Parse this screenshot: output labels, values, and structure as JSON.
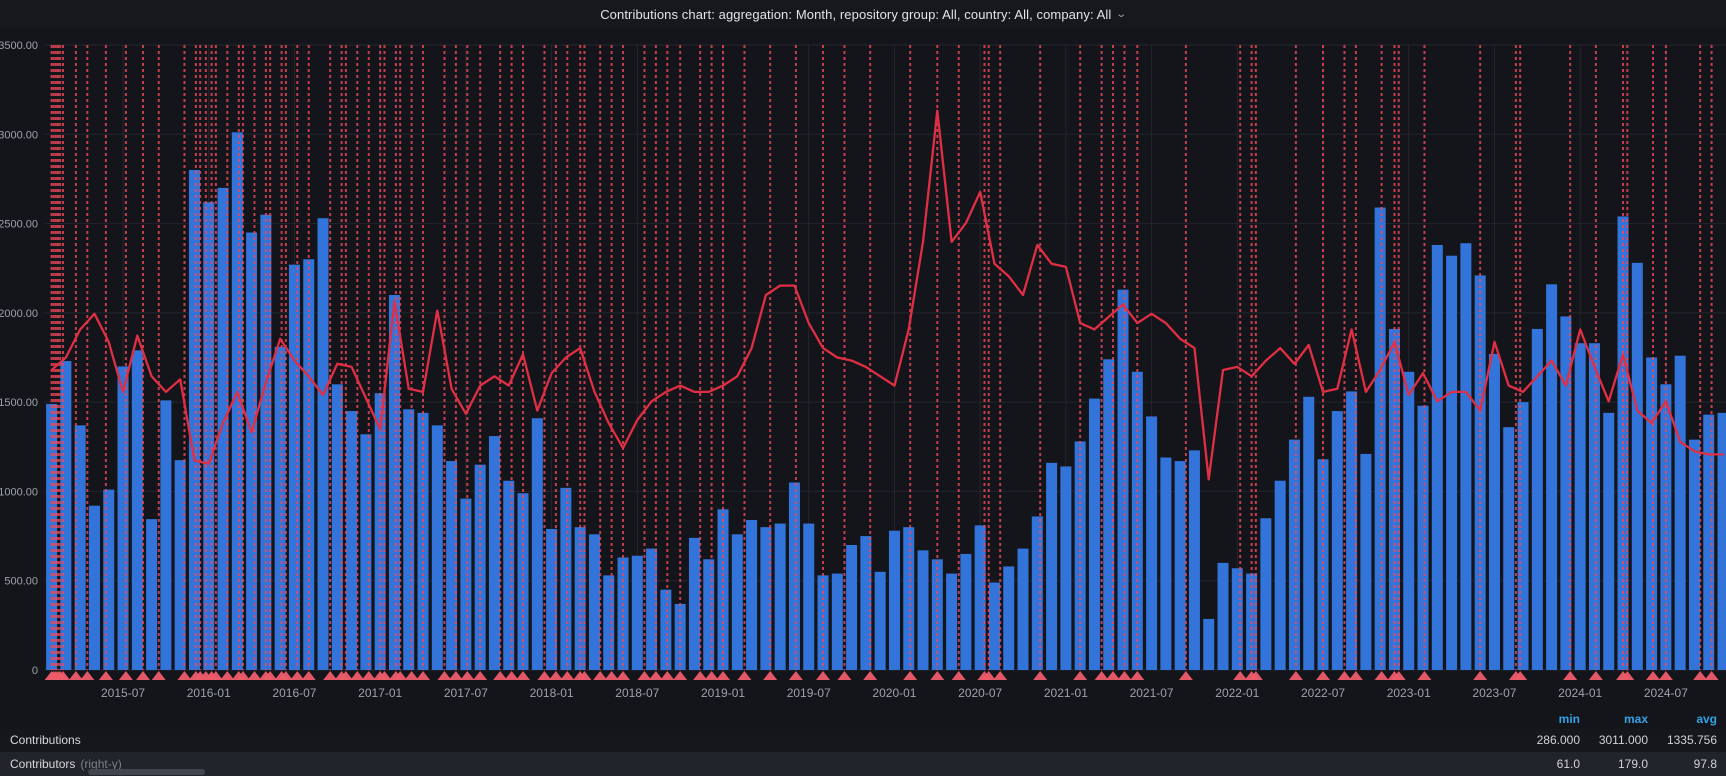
{
  "header": {
    "title": "Contributions chart: aggregation: Month, repository group: All, country: All, company: All",
    "chevron": "⌄"
  },
  "colors": {
    "background": "#13151a",
    "header_bg": "#17181d",
    "grid": "#23262c",
    "bar": "#3274d9",
    "line": "#e02f44",
    "annotation": "#f2495c",
    "annotation_marker": "#ed5c6b",
    "axis_text": "#9da3ab",
    "legend_header": "#33a2e5",
    "legend_text": "#d8d9da",
    "row2_bg": "#22242b"
  },
  "chart_data": {
    "type": "bar",
    "title": "Contributions chart: aggregation: Month, repository group: All, country: All, company: All",
    "xlabel": "",
    "ylabel": "",
    "grid": true,
    "legend_position": "bottom-table",
    "left_axis": {
      "min": 0,
      "max": 3500,
      "tick_step": 500,
      "tick_labels": [
        "3500.00",
        "3000.00",
        "2500.00",
        "2000.00",
        "1500.00",
        "1000.00",
        "500.00",
        "0"
      ]
    },
    "right_axis": {
      "min": 0,
      "max": 200,
      "labels_visible": false
    },
    "x_tick_labels": [
      "2015-07",
      "2016-01",
      "2016-07",
      "2017-01",
      "2017-07",
      "2018-01",
      "2018-07",
      "2019-01",
      "2019-07",
      "2020-01",
      "2020-07",
      "2021-01",
      "2021-07",
      "2022-01",
      "2022-07",
      "2023-01",
      "2023-07",
      "2024-01",
      "2024-07"
    ],
    "categories": [
      "2015-02",
      "2015-03",
      "2015-04",
      "2015-05",
      "2015-06",
      "2015-07",
      "2015-08",
      "2015-09",
      "2015-10",
      "2015-11",
      "2015-12",
      "2016-01",
      "2016-02",
      "2016-03",
      "2016-04",
      "2016-05",
      "2016-06",
      "2016-07",
      "2016-08",
      "2016-09",
      "2016-10",
      "2016-11",
      "2016-12",
      "2017-01",
      "2017-02",
      "2017-03",
      "2017-04",
      "2017-05",
      "2017-06",
      "2017-07",
      "2017-08",
      "2017-09",
      "2017-10",
      "2017-11",
      "2017-12",
      "2018-01",
      "2018-02",
      "2018-03",
      "2018-04",
      "2018-05",
      "2018-06",
      "2018-07",
      "2018-08",
      "2018-09",
      "2018-10",
      "2018-11",
      "2018-12",
      "2019-01",
      "2019-02",
      "2019-03",
      "2019-04",
      "2019-05",
      "2019-06",
      "2019-07",
      "2019-08",
      "2019-09",
      "2019-10",
      "2019-11",
      "2019-12",
      "2020-01",
      "2020-02",
      "2020-03",
      "2020-04",
      "2020-05",
      "2020-06",
      "2020-07",
      "2020-08",
      "2020-09",
      "2020-10",
      "2020-11",
      "2020-12",
      "2021-01",
      "2021-02",
      "2021-03",
      "2021-04",
      "2021-05",
      "2021-06",
      "2021-07",
      "2021-08",
      "2021-09",
      "2021-10",
      "2021-11",
      "2021-12",
      "2022-01",
      "2022-02",
      "2022-03",
      "2022-04",
      "2022-05",
      "2022-06",
      "2022-07",
      "2022-08",
      "2022-09",
      "2022-10",
      "2022-11",
      "2022-12",
      "2023-01",
      "2023-02",
      "2023-03",
      "2023-04",
      "2023-05",
      "2023-06",
      "2023-07",
      "2023-08",
      "2023-09",
      "2023-10",
      "2023-11",
      "2023-12",
      "2024-01",
      "2024-02",
      "2024-03",
      "2024-04",
      "2024-05",
      "2024-06",
      "2024-07",
      "2024-08",
      "2024-09",
      "2024-10",
      "2024-11"
    ],
    "series": [
      {
        "name": "Contributions",
        "type": "bar",
        "axis": "left",
        "color": "#3274d9",
        "values": [
          1490,
          1730,
          1370,
          920,
          1010,
          1700,
          1790,
          845,
          1510,
          1175,
          2800,
          2620,
          2700,
          3011,
          2450,
          2550,
          1810,
          2270,
          2300,
          2530,
          1600,
          1450,
          1320,
          1550,
          2100,
          1460,
          1440,
          1370,
          1170,
          960,
          1150,
          1310,
          1060,
          990,
          1410,
          790,
          1020,
          800,
          760,
          530,
          630,
          640,
          680,
          450,
          370,
          740,
          620,
          900,
          760,
          840,
          800,
          820,
          1050,
          820,
          530,
          540,
          700,
          750,
          550,
          780,
          800,
          670,
          620,
          540,
          650,
          810,
          490,
          580,
          680,
          860,
          1160,
          1140,
          1280,
          1520,
          1740,
          2130,
          1670,
          1420,
          1190,
          1170,
          1230,
          286,
          600,
          570,
          540,
          850,
          1060,
          1290,
          1530,
          1180,
          1450,
          1560,
          1210,
          2590,
          1910,
          1670,
          1480,
          2380,
          2320,
          2390,
          2210,
          1770,
          1360,
          1500,
          1910,
          2160,
          1980,
          1830,
          1830,
          1440,
          2540,
          2280,
          1750,
          1600,
          1760,
          1290,
          1430,
          1440
        ]
      },
      {
        "name": "Contributors",
        "type": "line",
        "axis": "right",
        "color": "#e02f44",
        "values": [
          96,
          100,
          109,
          114,
          105,
          89,
          107,
          94,
          89,
          93,
          67,
          66,
          79,
          89,
          76,
          92,
          106,
          99,
          94,
          88,
          98,
          97,
          87,
          77,
          118,
          90,
          89,
          115,
          90,
          82,
          91,
          94,
          91,
          101,
          83,
          95,
          100,
          103,
          89,
          79,
          71,
          80,
          86,
          89,
          91,
          89,
          89,
          91,
          94,
          103,
          120,
          123,
          123,
          111,
          103,
          100,
          99,
          97,
          94,
          91,
          109,
          137,
          179,
          137,
          143,
          153,
          130,
          126,
          120,
          136,
          130,
          129,
          111,
          109,
          113,
          117,
          111,
          114,
          111,
          106,
          103,
          61,
          96,
          97,
          94,
          99,
          103,
          98,
          104,
          89,
          90,
          109,
          89,
          96,
          105,
          88,
          95,
          86,
          89,
          89,
          83,
          105,
          91,
          89,
          94,
          99,
          91,
          109,
          97,
          86,
          101,
          83,
          79,
          86,
          73,
          70,
          69,
          69
        ]
      }
    ],
    "annotations_months": [
      0.0,
      0.15,
      0.3,
      0.45,
      0.6,
      0.8,
      1.7,
      2.5,
      3.8,
      5.2,
      6.4,
      7.5,
      9.3,
      10.1,
      10.4,
      10.8,
      11.2,
      11.5,
      12.3,
      13.1,
      13.4,
      14.2,
      15.0,
      15.3,
      16.1,
      16.4,
      17.2,
      18.0,
      19.5,
      20.3,
      20.6,
      21.4,
      22.2,
      23.0,
      23.3,
      24.1,
      24.4,
      25.2,
      26.0,
      27.5,
      28.3,
      29.1,
      30.0,
      31.4,
      32.2,
      33.0,
      34.5,
      35.3,
      36.1,
      37.0,
      37.3,
      38.4,
      39.2,
      40.0,
      41.5,
      42.3,
      43.1,
      44.0,
      45.4,
      46.2,
      47.0,
      48.5,
      50.3,
      52.1,
      54.0,
      55.5,
      57.3,
      60.1,
      62.0,
      63.5,
      65.3,
      65.6,
      66.4,
      69.2,
      72.0,
      73.5,
      74.3,
      75.1,
      76.0,
      79.4,
      83.2,
      84.0,
      84.3,
      87.1,
      89.0,
      90.5,
      91.3,
      93.1,
      94.0,
      94.3,
      96.1,
      100.0,
      102.5,
      102.8,
      106.3,
      108.1,
      110.0,
      110.3,
      112.1,
      113.0,
      115.4,
      116.2
    ]
  },
  "legend": {
    "headers": [
      "min",
      "max",
      "avg"
    ],
    "rows": [
      {
        "label": "Contributions",
        "suffix": "",
        "min": "286.000",
        "max": "3011.000",
        "avg": "1335.756"
      },
      {
        "label": "Contributors",
        "suffix": "(right-y)",
        "min": "61.0",
        "max": "179.0",
        "avg": "97.8"
      }
    ]
  }
}
